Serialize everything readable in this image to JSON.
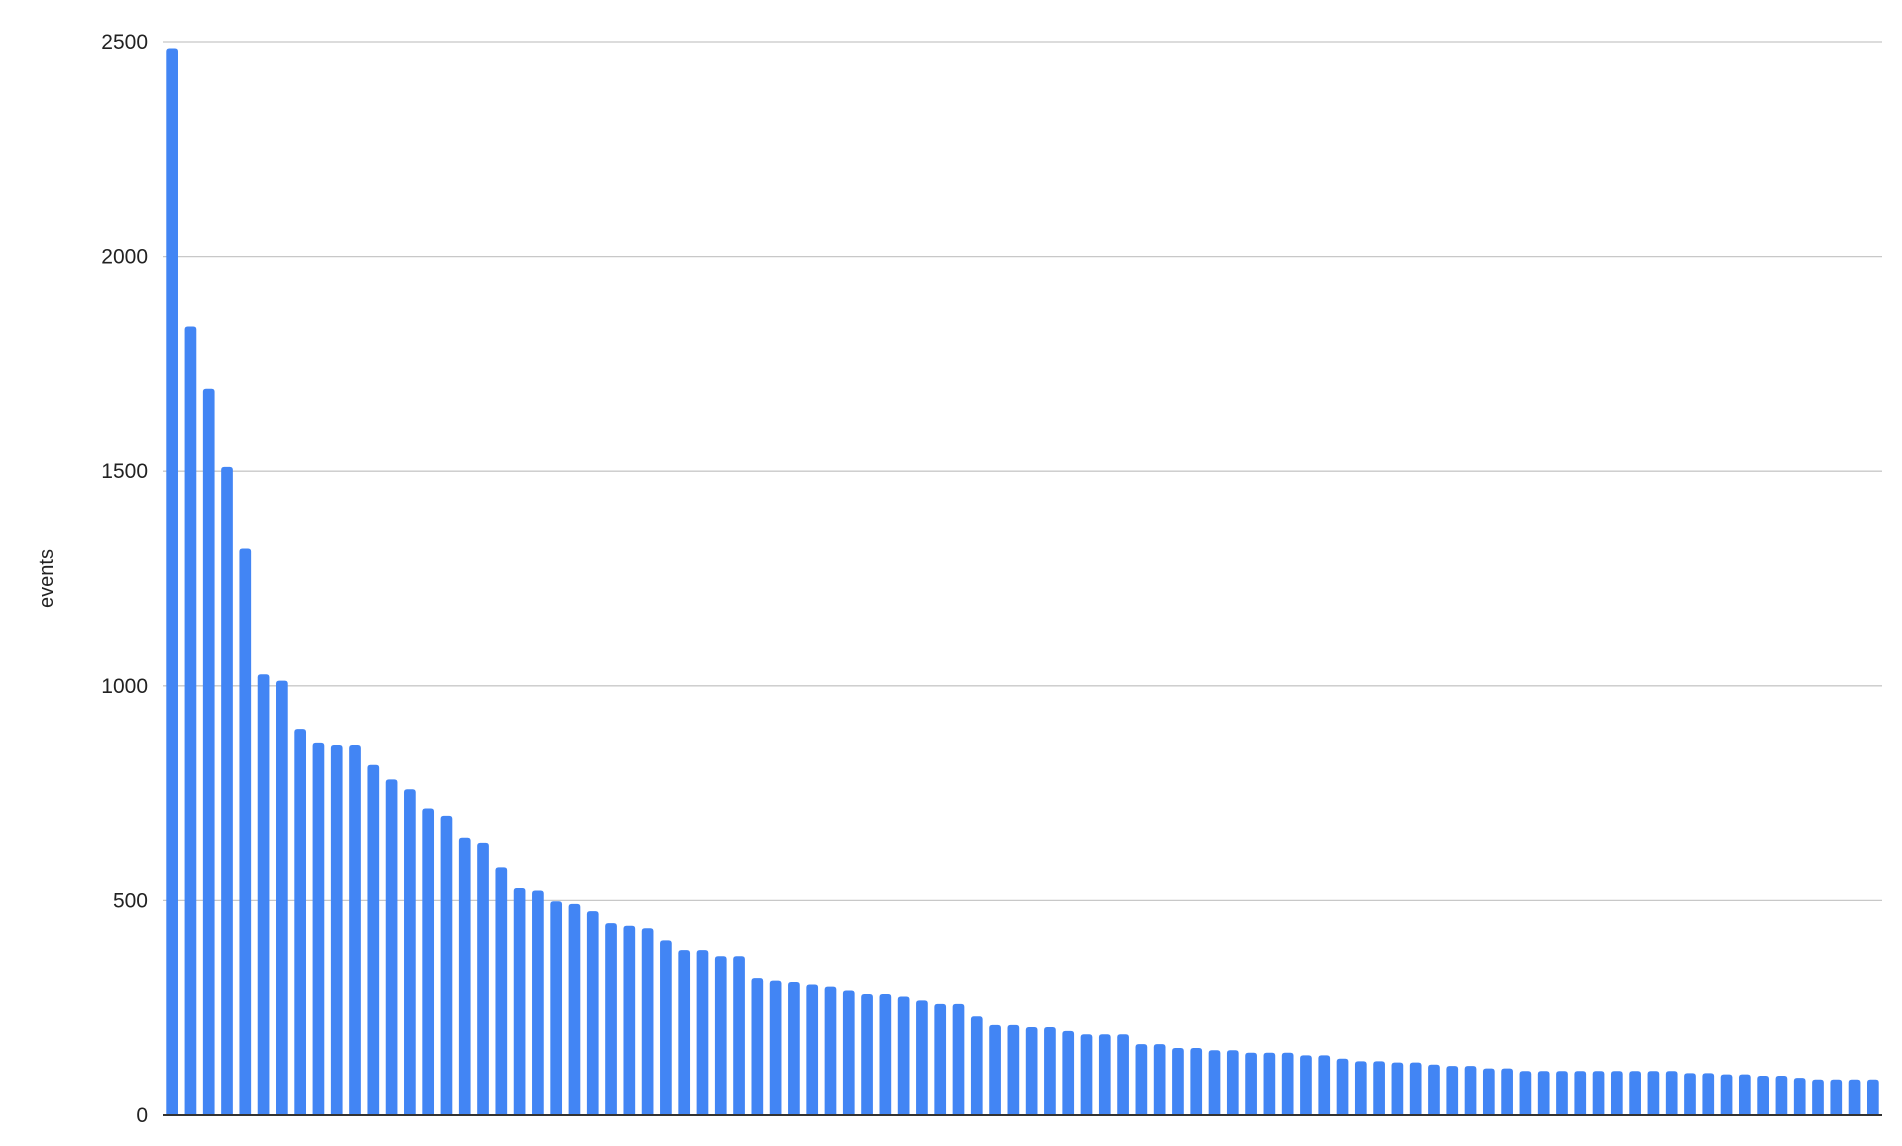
{
  "chart_data": {
    "type": "bar",
    "title": "",
    "xlabel": "",
    "ylabel": "events",
    "ylim": [
      0,
      2500
    ],
    "yticks": [
      "0",
      "500",
      "1000",
      "1500",
      "2000",
      "2500"
    ],
    "grid": true,
    "bar_color": "#4285f4",
    "values": [
      2485,
      1837,
      1692,
      1510,
      1320,
      1027,
      1012,
      899,
      867,
      862,
      862,
      816,
      782,
      759,
      714,
      697,
      646,
      634,
      577,
      529,
      523,
      498,
      492,
      475,
      447,
      441,
      435,
      407,
      384,
      384,
      370,
      370,
      319,
      313,
      310,
      304,
      299,
      290,
      282,
      282,
      276,
      267,
      259,
      259,
      230,
      210,
      210,
      205,
      205,
      196,
      188,
      188,
      188,
      165,
      165,
      156,
      156,
      151,
      151,
      145,
      145,
      145,
      139,
      139,
      131,
      125,
      125,
      122,
      122,
      117,
      114,
      114,
      108,
      108,
      102,
      102,
      102,
      102,
      102,
      102,
      102,
      102,
      102,
      97,
      97,
      94,
      94,
      91,
      91,
      86,
      82,
      82,
      82,
      82
    ]
  }
}
